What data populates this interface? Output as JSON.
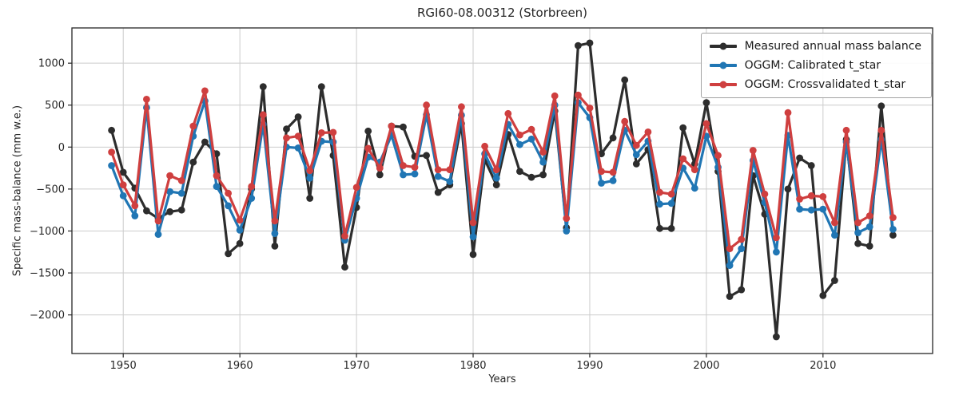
{
  "title": "RGI60-08.00312 (Storbreen)",
  "axes": {
    "xlabel": "Years",
    "ylabel": "Specific mass-balance (mm w.e.)"
  },
  "legend": [
    {
      "label": "Measured annual mass balance",
      "color": "#2d2d2d"
    },
    {
      "label": "OGGM: Calibrated t_star",
      "color": "#2076b4"
    },
    {
      "label": "OGGM: Crossvalidated t_star",
      "color": "#cf3f3f"
    }
  ],
  "chart_data": {
    "type": "line",
    "title": "RGI60-08.00312 (Storbreen)",
    "xlabel": "Years",
    "ylabel": "Specific mass-balance (mm w.e.)",
    "x": [
      1949,
      1950,
      1951,
      1952,
      1953,
      1954,
      1955,
      1956,
      1957,
      1958,
      1959,
      1960,
      1961,
      1962,
      1963,
      1964,
      1965,
      1966,
      1967,
      1968,
      1969,
      1970,
      1971,
      1972,
      1973,
      1974,
      1975,
      1976,
      1977,
      1978,
      1979,
      1980,
      1981,
      1982,
      1983,
      1984,
      1985,
      1986,
      1987,
      1988,
      1989,
      1990,
      1991,
      1992,
      1993,
      1994,
      1995,
      1996,
      1997,
      1998,
      1999,
      2000,
      2001,
      2002,
      2003,
      2004,
      2005,
      2006,
      2007,
      2008,
      2009,
      2010,
      2011,
      2012,
      2013,
      2014,
      2015,
      2016
    ],
    "series": [
      {
        "name": "Measured annual mass balance",
        "color": "#2d2d2d",
        "values": [
          200,
          -300,
          -490,
          -760,
          -850,
          -770,
          -750,
          -180,
          60,
          -80,
          -1270,
          -1150,
          -500,
          720,
          -1180,
          215,
          360,
          -610,
          720,
          -100,
          -1430,
          -720,
          190,
          -330,
          250,
          240,
          -110,
          -100,
          -540,
          -450,
          280,
          -1280,
          -150,
          -450,
          150,
          -290,
          -360,
          -330,
          430,
          -960,
          1210,
          1240,
          -80,
          110,
          800,
          -200,
          -30,
          -970,
          -970,
          230,
          -200,
          530,
          -290,
          -1780,
          -1700,
          -340,
          -800,
          -2260,
          -500,
          -130,
          -220,
          -1770,
          -1590,
          90,
          -1150,
          -1180,
          490,
          -1050
        ]
      },
      {
        "name": "OGGM: Calibrated t_star",
        "color": "#2076b4",
        "values": [
          -220,
          -580,
          -820,
          470,
          -1040,
          -530,
          -550,
          130,
          550,
          -470,
          -700,
          -990,
          -610,
          270,
          -1030,
          0,
          -10,
          -370,
          70,
          60,
          -1110,
          -610,
          -120,
          -180,
          140,
          -330,
          -320,
          385,
          -350,
          -410,
          380,
          -1070,
          -80,
          -370,
          270,
          30,
          95,
          -180,
          500,
          -1000,
          530,
          350,
          -430,
          -400,
          200,
          -90,
          70,
          -680,
          -670,
          -250,
          -490,
          130,
          -240,
          -1410,
          -1210,
          -160,
          -660,
          -1250,
          140,
          -740,
          -750,
          -740,
          -1050,
          60,
          -1020,
          -950,
          90,
          -980
        ]
      },
      {
        "name": "OGGM: Crossvalidated t_star",
        "color": "#cf3f3f",
        "values": [
          -60,
          -450,
          -700,
          570,
          -880,
          -340,
          -400,
          250,
          670,
          -340,
          -550,
          -870,
          -470,
          385,
          -880,
          110,
          130,
          -280,
          170,
          175,
          -1060,
          -480,
          -15,
          -250,
          250,
          -220,
          -240,
          500,
          -270,
          -270,
          480,
          -900,
          10,
          -270,
          400,
          145,
          210,
          -60,
          610,
          -850,
          620,
          465,
          -290,
          -300,
          305,
          20,
          180,
          -540,
          -560,
          -140,
          -270,
          280,
          -100,
          -1210,
          -1100,
          -40,
          -560,
          -1080,
          410,
          -620,
          -580,
          -590,
          -900,
          200,
          -900,
          -820,
          200,
          -840
        ]
      }
    ],
    "xlim": [
      1945.6,
      2019.4
    ],
    "ylim": [
      -2460,
      1420
    ],
    "xticks": [
      1950,
      1960,
      1970,
      1980,
      1990,
      2000,
      2010
    ],
    "yticks": [
      1000,
      500,
      0,
      -500,
      -1000,
      -1500,
      -2000
    ],
    "grid": true,
    "legend_position": "upper right",
    "marker": "o",
    "line_width": 3.2,
    "grid_color": "#cccccc",
    "frame_color": "#262626"
  }
}
